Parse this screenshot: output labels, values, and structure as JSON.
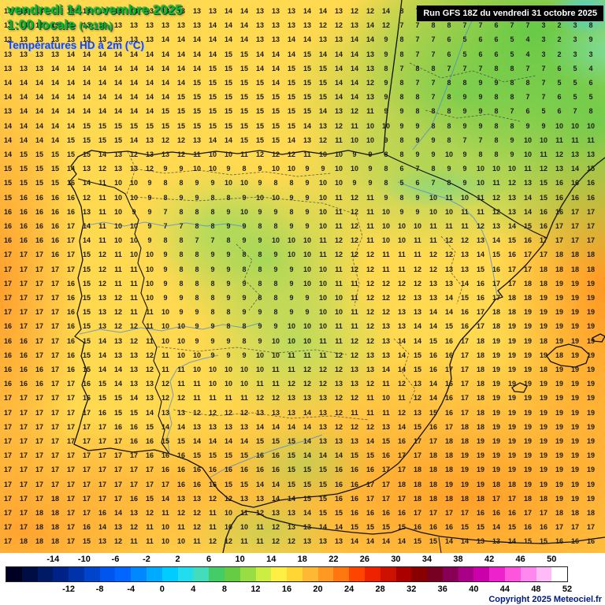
{
  "header": {
    "date_line": "vendredi 14 novembre 2025",
    "time_line": "1:00 locale",
    "offset_label": "(+318h)",
    "variable_label": "Températures HD à 2m (°C)"
  },
  "run_info": {
    "label": "Run GFS 18Z du vendredi 31 octobre 2025"
  },
  "copyright": "Copyright 2025 Meteociel.fr",
  "map": {
    "grid_rows": [
      "13 13 13 13 13 13 13 13 13 13 13 13 13 13 14 14 13 13 13 14 14 13 12 12 14 8 7 9 8 9 8 7 6 6 5 3 2 3",
      "13 13 13 13 13 13 13 13 13 13 13 13 13 14 14 14 13 13 13 13 12 12 13 14 12 7 7 8 8 7 7 6 7 7 3 2 3 8",
      "13 13 13 13 13 13 13 13 13 13 14 14 14 14 14 14 13 13 14 14 13 13 14 14 9 8 7 7 6 5 6 6 5 4 3 2 3 9",
      "13 13 13 13 14 14 14 14 14 14 14 14 14 14 15 15 14 14 14 15 14 14 14 13 9 8 7 7 6 5 6 6 5 4 3 2 3 3",
      "13 13 13 14 14 14 14 14 14 14 14 14 14 15 15 15 14 14 15 15 15 14 14 13 8 7 8 8 7 7 7 8 8 7 7 6 5 4",
      "14 14 14 14 14 14 14 14 14 14 14 14 15 15 15 15 15 14 15 15 15 14 14 12 9 8 7 7 8 8 9 9 8 8 7 5 5 6",
      "14 14 14 14 14 14 14 14 14 14 14 15 15 15 15 15 15 15 15 15 15 14 14 13 9 8 8 7 8 9 9 8 8 7 7 6 5 5",
      "13 14 14 14 14 14 14 14 14 14 15 15 15 15 15 15 15 15 15 15 14 13 12 11 9 9 8 8 8 9 9 8 7 6 5 6 7 8",
      "14 14 14 14 14 15 15 15 15 15 15 15 15 15 15 15 15 15 15 14 13 12 11 10 10 9 9 8 8 9 9 8 8 9 9 10 10 10",
      "14 14 14 14 15 15 15 15 14 13 12 12 13 14 14 15 15 15 14 13 12 11 10 10 9 8 9 9 8 7 7 8 9 10 10 11 11 11",
      "14 15 15 15 15 15 14 13 12 13 13 12 11 10 10 11 12 12 12 11 10 10 9 9 8 8 9 9 10 9 8 8 9 10 11 12 13 13",
      "15 15 15 15 14 13 12 13 13 12 9 9 10 10 9 8 9 10 10 9 9 10 10 9 8 6 7 8 9 9 10 10 10 11 12 13 14 15",
      "15 15 15 15 16 14 11 10 10 9 8 8 9 9 10 10 9 8 8 9 10 10 9 9 8 5 6 7 8 9 10 11 12 13 15 16 16 16",
      "15 16 16 16 16 12 11 10 10 9 8 9 9 8 8 9 10 10 9 9 10 11 12 11 9 8 9 10 11 10 11 12 13 14 15 16 16 16",
      "16 16 16 16 16 13 11 10 9 9 7 8 8 8 9 10 9 9 8 9 10 11 12 11 10 9 9 10 10 11 11 12 13 14 16 16 17 17",
      "16 16 16 16 17 14 11 10 10 9 7 7 8 8 9 9 8 8 9 9 10 11 12 11 10 10 10 11 11 11 12 13 14 15 16 17 17 17",
      "16 16 16 16 17 14 11 10 10 9 8 8 7 7 8 9 9 10 10 10 11 12 12 11 10 10 11 11 12 12 13 14 15 16 17 17 17 17",
      "17 17 17 16 17 15 12 11 10 10 9 8 8 9 9 8 8 9 10 10 11 12 12 12 11 11 11 12 12 13 14 15 16 17 17 18 18 18",
      "17 17 17 17 17 15 12 11 11 10 9 8 8 9 9 8 8 9 9 10 10 11 12 12 11 11 12 12 13 13 15 16 17 17 18 18 18 18",
      "17 17 17 17 16 15 12 11 11 10 9 8 8 8 9 9 8 8 9 10 10 11 11 12 12 12 12 13 13 14 16 17 17 18 18 19 19 19",
      "17 17 17 17 16 15 13 12 11 10 9 9 8 8 9 9 8 8 9 9 10 10 11 12 12 12 13 13 14 15 16 17 18 18 19 19 19 19",
      "17 17 17 17 16 15 13 12 11 11 10 9 9 8 8 9 9 8 9 9 10 10 11 12 12 13 13 14 14 16 17 18 18 19 19 19 19 19",
      "16 17 17 17 16 15 13 12 12 11 10 10 9 9 8 8 9 9 10 10 10 11 11 12 13 13 14 14 15 16 17 18 19 19 19 19 19 19",
      "16 16 17 17 16 15 14 13 12 11 10 10 9 9 9 8 9 10 10 10 11 11 12 12 13 14 14 15 16 17 18 19 19 19 18 19 19 19",
      "16 16 17 17 16 15 14 13 13 12 11 10 10 9 9 9 10 10 11 11 11 12 12 13 13 14 15 16 16 17 18 19 19 19 19 18 19 19",
      "16 16 16 17 16 15 14 14 13 12 11 11 10 10 10 10 10 11 11 12 12 12 13 13 14 14 15 16 17 17 18 19 19 19 18 19 19 19",
      "16 16 16 17 17 16 15 14 13 13 12 11 11 10 10 10 11 11 12 12 12 13 13 12 11 12 13 14 16 17 18 19 19 19 19 19 19 19",
      "17 17 17 17 17 16 15 15 14 13 12 12 11 11 11 11 12 12 13 13 13 12 12 11 10 11 12 14 16 17 18 19 19 19 19 19 19 19",
      "17 17 17 17 17 17 16 15 15 14 13 13 12 12 12 12 13 13 13 14 13 12 11 11 11 12 13 15 16 17 18 19 19 19 19 19 19 19",
      "17 17 17 17 17 17 17 16 16 15 14 14 13 13 13 13 14 14 14 14 13 12 12 12 13 14 15 16 17 18 18 19 19 19 19 19 19 19",
      "17 17 17 17 17 17 17 17 16 16 15 15 14 14 14 14 15 15 15 14 13 13 13 14 15 16 17 17 18 18 19 19 19 19 19 19 19 19",
      "17 17 17 17 17 17 17 17 17 16 16 16 15 15 15 15 16 16 15 14 14 14 15 15 16 17 17 18 18 19 19 19 19 19 19 19 19 19",
      "17 17 17 17 17 17 17 17 17 17 16 16 16 16 16 16 16 16 15 15 15 16 16 16 17 17 18 18 18 19 19 19 19 19 19 19 19 19",
      "17 17 17 17 17 17 17 17 17 17 17 16 16 16 15 15 14 14 15 15 15 16 16 17 17 18 18 18 19 19 19 18 18 19 19 19 19 19",
      "17 17 17 18 17 17 17 17 16 15 14 13 13 12 12 13 13 14 14 15 15 16 16 17 17 17 18 18 18 18 18 17 17 18 18 19 19 19",
      "17 17 18 18 17 17 16 14 13 12 11 12 12 11 10 11 12 13 13 14 15 15 16 16 16 16 17 17 17 17 16 16 16 17 17 18 18 18",
      "17 17 18 18 17 16 14 13 12 11 10 11 12 11 10 10 11 12 13 13 14 14 15 15 15 15 16 16 16 15 15 14 15 16 16 17 17 17",
      "17 18 18 18 17 15 13 12 11 11 10 10 11 12 12 11 11 12 12 13 13 13 14 14 14 14 15 15 14 14 13 13 14 15 15 16 16 16"
    ]
  },
  "colorbar": {
    "unit": "°C",
    "ticks_top": [
      "-14",
      "-10",
      "-6",
      "-2",
      "2",
      "6",
      "10",
      "14",
      "18",
      "22",
      "26",
      "30",
      "34",
      "38",
      "42",
      "46",
      "50"
    ],
    "ticks_bottom": [
      "-12",
      "-8",
      "-4",
      "0",
      "4",
      "8",
      "12",
      "16",
      "20",
      "24",
      "28",
      "32",
      "36",
      "40",
      "44",
      "48",
      "52"
    ],
    "colors": [
      "#000022",
      "#000d44",
      "#001a66",
      "#002288",
      "#0033aa",
      "#0044cc",
      "#0055ee",
      "#0066ff",
      "#0088ff",
      "#00aaff",
      "#00ccff",
      "#22ddee",
      "#44ddbb",
      "#44cc66",
      "#66cc44",
      "#99dd44",
      "#ccee44",
      "#ffee44",
      "#ffd633",
      "#ffb833",
      "#ff9922",
      "#ff7711",
      "#ff4400",
      "#ee2200",
      "#cc1100",
      "#aa0000",
      "#880000",
      "#770022",
      "#880055",
      "#aa0088",
      "#cc00aa",
      "#ee22cc",
      "#ff55dd",
      "#ff88ee",
      "#ffbbf5",
      "#ffffff"
    ]
  }
}
